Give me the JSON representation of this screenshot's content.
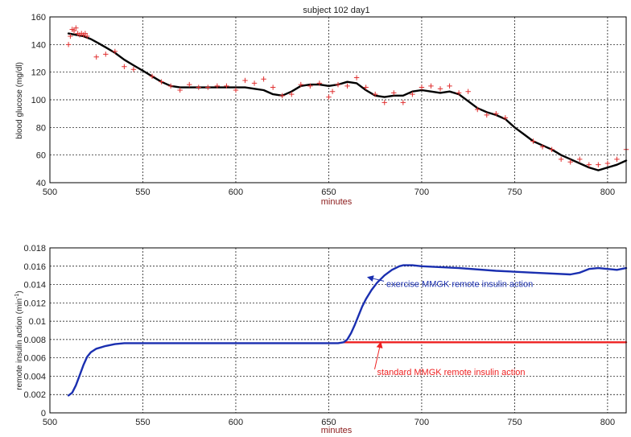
{
  "chart_data": [
    {
      "type": "line",
      "title": "subject 102 day1",
      "xlabel": "minutes",
      "ylabel": "blood glucose (mg/dl)",
      "xlim": [
        500,
        810
      ],
      "ylim": [
        40,
        160
      ],
      "xticks": [
        500,
        550,
        600,
        650,
        700,
        750,
        800
      ],
      "yticks": [
        40,
        60,
        80,
        100,
        120,
        140,
        160
      ],
      "grid": true,
      "series": [
        {
          "style": "line",
          "color": "#000000",
          "x": [
            510,
            514,
            518,
            522,
            526,
            530,
            535,
            540,
            545,
            550,
            555,
            560,
            565,
            570,
            575,
            580,
            585,
            590,
            595,
            600,
            605,
            610,
            615,
            620,
            625,
            630,
            635,
            640,
            645,
            650,
            655,
            660,
            665,
            670,
            675,
            680,
            685,
            690,
            695,
            700,
            705,
            710,
            715,
            720,
            725,
            730,
            735,
            740,
            745,
            750,
            755,
            760,
            765,
            770,
            775,
            780,
            785,
            790,
            795,
            800,
            805,
            810
          ],
          "y": [
            148,
            147,
            146,
            144,
            141,
            138,
            134,
            129,
            125,
            121,
            117,
            113,
            110,
            109,
            109,
            109,
            109,
            109,
            109,
            109,
            109,
            108,
            107,
            104,
            103,
            106,
            110,
            111,
            111,
            110,
            111,
            113,
            112,
            107,
            103,
            102,
            103,
            103,
            106,
            107,
            106,
            105,
            106,
            104,
            99,
            94,
            91,
            89,
            86,
            80,
            75,
            70,
            67,
            64,
            60,
            57,
            54,
            51,
            49,
            51,
            53,
            56
          ]
        },
        {
          "style": "markers",
          "marker": "+",
          "color": "#e03030",
          "x": [
            510,
            511,
            512,
            513,
            514,
            515,
            516,
            517,
            518,
            519,
            520,
            525,
            530,
            535,
            540,
            545,
            555,
            560,
            565,
            570,
            575,
            580,
            585,
            590,
            595,
            600,
            605,
            610,
            615,
            620,
            625,
            630,
            635,
            640,
            645,
            650,
            652,
            655,
            660,
            665,
            670,
            675,
            680,
            685,
            690,
            695,
            700,
            705,
            710,
            715,
            720,
            725,
            730,
            735,
            740,
            745,
            760,
            765,
            770,
            775,
            780,
            785,
            790,
            795,
            800,
            805,
            810
          ],
          "y": [
            140,
            146,
            151,
            150,
            152,
            148,
            147,
            148,
            147,
            148,
            146,
            131,
            133,
            135,
            124,
            122,
            117,
            113,
            110,
            107,
            111,
            109,
            109,
            110,
            110,
            107,
            114,
            112,
            115,
            109,
            103,
            104,
            111,
            110,
            112,
            102,
            106,
            111,
            110,
            116,
            109,
            104,
            98,
            105,
            98,
            104,
            109,
            110,
            108,
            110,
            105,
            106,
            93,
            89,
            90,
            87,
            70,
            66,
            64,
            57,
            55,
            57,
            53,
            53,
            54,
            57,
            64
          ]
        }
      ]
    },
    {
      "type": "line",
      "xlabel": "minutes",
      "ylabel": "remote insulin action (min",
      "ylabel_sup": "-1",
      "ylabel_tail": ")",
      "xlim": [
        500,
        810
      ],
      "ylim": [
        0,
        0.018
      ],
      "xticks": [
        500,
        550,
        600,
        650,
        700,
        750,
        800
      ],
      "yticks": [
        0,
        0.002,
        0.004,
        0.006,
        0.008,
        0.01,
        0.012,
        0.014,
        0.016,
        0.018
      ],
      "yticklabels": [
        "0",
        "0.002",
        "0.004",
        "0.006",
        "0.008",
        "0.01",
        "0.012",
        "0.014",
        "0.016",
        "0.018"
      ],
      "grid": true,
      "series": [
        {
          "style": "line",
          "color": "#ee2020",
          "x": [
            658,
            810
          ],
          "y": [
            0.0077,
            0.0077
          ]
        },
        {
          "style": "line",
          "color": "#1a2fb0",
          "x": [
            510,
            512,
            514,
            516,
            518,
            520,
            522,
            525,
            530,
            535,
            540,
            550,
            560,
            600,
            640,
            655,
            658,
            660,
            662,
            664,
            666,
            668,
            670,
            673,
            676,
            680,
            684,
            688,
            690,
            695,
            700,
            720,
            740,
            760,
            780,
            785,
            790,
            795,
            800,
            805,
            810
          ],
          "y": [
            0.0019,
            0.0022,
            0.003,
            0.0041,
            0.0052,
            0.0061,
            0.0066,
            0.007,
            0.0073,
            0.0075,
            0.0076,
            0.0076,
            0.0076,
            0.0076,
            0.0076,
            0.0076,
            0.0077,
            0.008,
            0.0087,
            0.0096,
            0.0106,
            0.0116,
            0.0124,
            0.0134,
            0.0142,
            0.015,
            0.0156,
            0.016,
            0.0161,
            0.0161,
            0.016,
            0.0158,
            0.0155,
            0.0153,
            0.0151,
            0.0153,
            0.0157,
            0.0158,
            0.0157,
            0.0156,
            0.0158
          ]
        }
      ],
      "annotations": [
        {
          "text": "exercise MMGK remote insulin action",
          "color": "#1a2fb0",
          "text_at": [
            681,
            0.0141
          ],
          "arrow_to": [
            671,
            0.0148
          ]
        },
        {
          "text": "standard MMGK remote insulin action",
          "color": "#ee2020",
          "text_at": [
            676,
            0.0045
          ],
          "arrow_to": [
            678,
            0.0077
          ]
        }
      ]
    }
  ]
}
